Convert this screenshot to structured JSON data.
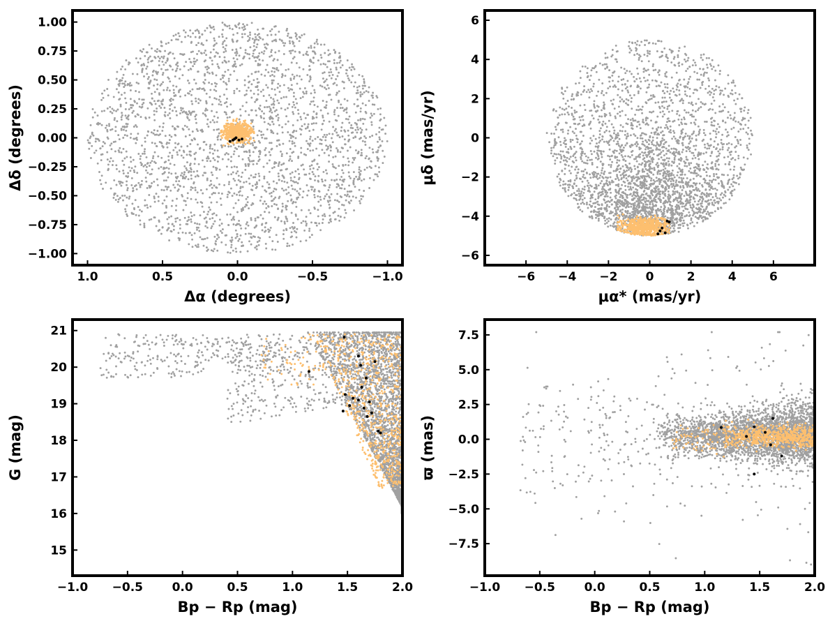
{
  "colors": {
    "field": "#a0a0a0",
    "members": "#fdbf6f",
    "special": "#000000",
    "axes": "#000000"
  },
  "chart_data": [
    {
      "id": "spatial",
      "type": "scatter",
      "xlabel_main": "Δα",
      "xlabel_rest": " (degrees)",
      "ylabel_main": "Δδ",
      "ylabel_rest": " (degrees)",
      "xlim": [
        1.1,
        -1.1
      ],
      "ylim": [
        -1.1,
        1.1
      ],
      "x_reversed": true,
      "xticks": [
        1.0,
        0.5,
        0.0,
        -0.5,
        -1.0
      ],
      "xtick_labels": [
        "1.0",
        "0.5",
        "0.0",
        "−0.5",
        "−1.0"
      ],
      "yticks": [
        -1.0,
        -0.75,
        -0.5,
        -0.25,
        0.0,
        0.25,
        0.5,
        0.75,
        1.0
      ],
      "ytick_labels": [
        "−1.00",
        "−0.75",
        "−0.50",
        "−0.25",
        "0.00",
        "0.25",
        "0.50",
        "0.75",
        "1.00"
      ],
      "grid": false,
      "series": [
        {
          "role": "field",
          "shape": "disk",
          "center": [
            0.0,
            0.0
          ],
          "radius": [
            1.0,
            1.0
          ],
          "count": 2600
        },
        {
          "role": "members",
          "shape": "gaussian",
          "center": [
            0.0,
            0.05
          ],
          "sigma": [
            0.045,
            0.04
          ],
          "clip": [
            0.11,
            0.12
          ],
          "count": 600
        },
        {
          "role": "special",
          "points": [
            [
              0.03,
              -0.02
            ],
            [
              0.02,
              -0.01
            ],
            [
              -0.01,
              -0.02
            ],
            [
              -0.03,
              -0.01
            ],
            [
              0.05,
              -0.03
            ],
            [
              0.01,
              0.0
            ]
          ]
        }
      ]
    },
    {
      "id": "proper-motion",
      "type": "scatter",
      "xlabel_main": "μα*",
      "xlabel_rest": "  (mas/yr)",
      "ylabel_main": "μδ",
      "ylabel_rest": " (mas/yr)",
      "xlim": [
        -8.0,
        8.0
      ],
      "ylim": [
        -6.5,
        6.5
      ],
      "xticks": [
        -6,
        -4,
        -2,
        0,
        2,
        4,
        6
      ],
      "xtick_labels": [
        "−6",
        "−4",
        "−2",
        "0",
        "2",
        "4",
        "6"
      ],
      "yticks": [
        -6,
        -4,
        -2,
        0,
        2,
        4,
        6
      ],
      "ytick_labels": [
        "−6",
        "−4",
        "−2",
        "0",
        "2",
        "4",
        "6"
      ],
      "grid": false,
      "series": [
        {
          "role": "field",
          "shape": "pm-disk",
          "center": [
            0.0,
            0.0
          ],
          "radius": [
            5.0,
            5.0
          ],
          "concentrate_at": [
            0.0,
            -4.2
          ],
          "count": 3200
        },
        {
          "role": "members",
          "shape": "gaussian",
          "center": [
            -0.3,
            -4.55
          ],
          "sigma": [
            0.6,
            0.25
          ],
          "clip": [
            1.25,
            0.65
          ],
          "count": 600
        },
        {
          "role": "special",
          "points": [
            [
              0.85,
              -4.25
            ],
            [
              0.95,
              -4.3
            ],
            [
              0.6,
              -4.6
            ],
            [
              0.5,
              -4.75
            ],
            [
              0.75,
              -4.85
            ],
            [
              0.4,
              -4.9
            ]
          ]
        }
      ]
    },
    {
      "id": "cmd",
      "type": "scatter",
      "xlabel_main": "Bp − Rp",
      "xlabel_rest": " (mag)",
      "ylabel_main": "G",
      "ylabel_rest": " (mag)",
      "xlim": [
        -1.0,
        2.0
      ],
      "ylim": [
        14.3,
        21.3
      ],
      "y_reversed": false,
      "xticks": [
        -1.0,
        -0.5,
        0.0,
        0.5,
        1.0,
        1.5,
        2.0
      ],
      "xtick_labels": [
        "−1.0",
        "−0.5",
        "0.0",
        "0.5",
        "1.0",
        "1.5",
        "2.0"
      ],
      "yticks": [
        15,
        16,
        17,
        18,
        19,
        20,
        21
      ],
      "ytick_labels": [
        "15",
        "16",
        "17",
        "18",
        "19",
        "20",
        "21"
      ],
      "grid": false,
      "series": [
        {
          "role": "field",
          "shape": "cmd",
          "count": 3000
        },
        {
          "role": "members",
          "shape": "cmd-members",
          "count": 650
        },
        {
          "role": "special",
          "points": [
            [
              1.47,
              20.82
            ],
            [
              1.6,
              20.3
            ],
            [
              1.75,
              20.15
            ],
            [
              1.62,
              20.05
            ],
            [
              1.15,
              19.88
            ],
            [
              1.67,
              19.7
            ],
            [
              1.63,
              19.45
            ],
            [
              1.48,
              19.25
            ],
            [
              1.55,
              19.15
            ],
            [
              1.6,
              19.1
            ],
            [
              1.7,
              19.05
            ],
            [
              1.52,
              18.95
            ],
            [
              1.65,
              18.88
            ],
            [
              1.46,
              18.8
            ],
            [
              1.72,
              18.75
            ],
            [
              1.68,
              18.65
            ],
            [
              1.78,
              18.25
            ],
            [
              1.8,
              18.2
            ]
          ]
        }
      ]
    },
    {
      "id": "parallax",
      "type": "scatter",
      "xlabel_main": "Bp − Rp",
      "xlabel_rest": " (mag)",
      "ylabel_main": "ϖ",
      "ylabel_rest": " (mas)",
      "xlim": [
        -1.0,
        2.0
      ],
      "ylim": [
        -9.8,
        8.6
      ],
      "xticks": [
        -1.0,
        -0.5,
        0.0,
        0.5,
        1.0,
        1.5,
        2.0
      ],
      "xtick_labels": [
        "−1.0",
        "−0.5",
        "0.0",
        "0.5",
        "1.0",
        "1.5",
        "2.0"
      ],
      "yticks": [
        -7.5,
        -5.0,
        -2.5,
        0.0,
        2.5,
        5.0,
        7.5
      ],
      "ytick_labels": [
        "−7.5",
        "−5.0",
        "−2.5",
        "0.0",
        "2.5",
        "5.0",
        "7.5"
      ],
      "grid": false,
      "series": [
        {
          "role": "field",
          "shape": "plx",
          "count": 3200
        },
        {
          "role": "members",
          "shape": "plx-members",
          "count": 650
        },
        {
          "role": "special",
          "points": [
            [
              1.15,
              0.85
            ],
            [
              1.45,
              0.9
            ],
            [
              1.62,
              1.5
            ],
            [
              1.6,
              -0.4
            ],
            [
              1.7,
              -1.2
            ],
            [
              1.45,
              -2.5
            ],
            [
              1.55,
              0.5
            ],
            [
              1.38,
              0.2
            ]
          ]
        }
      ]
    }
  ]
}
